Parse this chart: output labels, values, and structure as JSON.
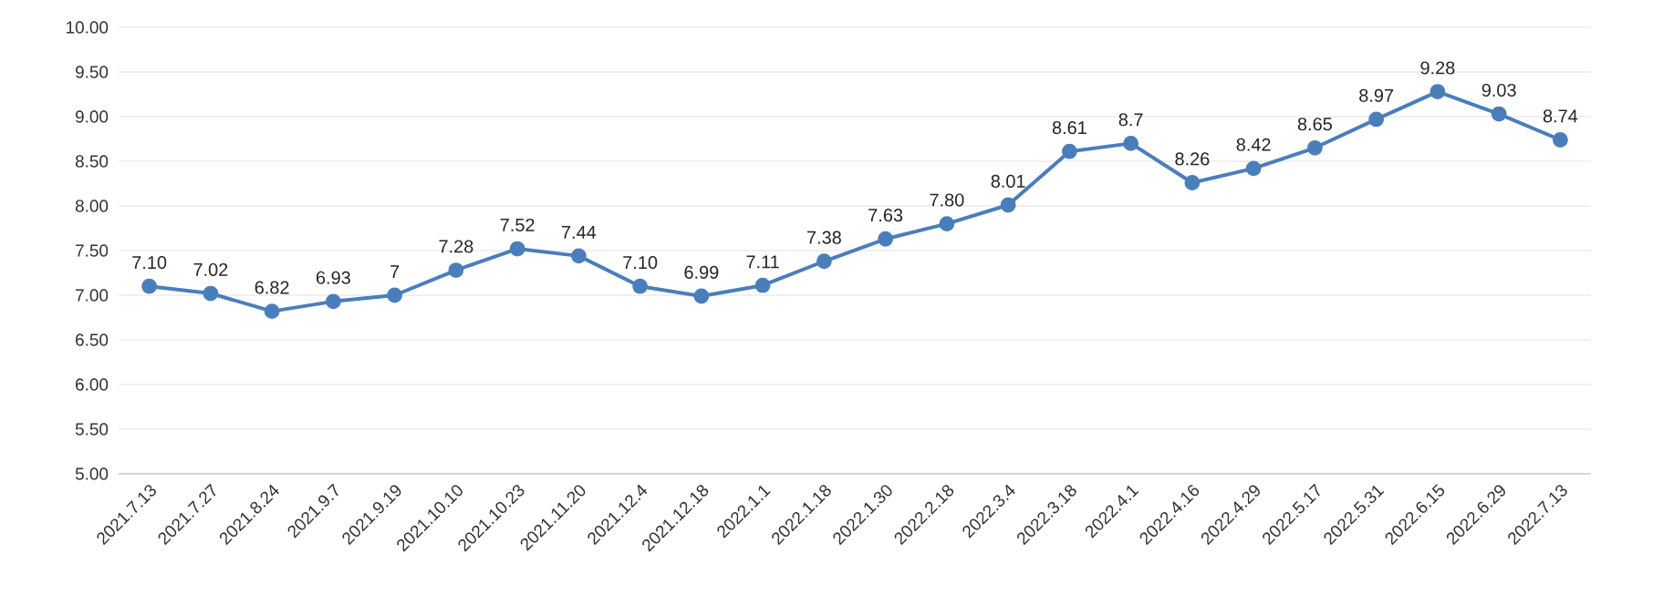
{
  "chart_data": {
    "type": "line",
    "categories": [
      "2021.7.13",
      "2021.7.27",
      "2021.8.24",
      "2021.9.7",
      "2021.9.19",
      "2021.10.10",
      "2021.10.23",
      "2021.11.20",
      "2021.12.4",
      "2021.12.18",
      "2022.1.1",
      "2022.1.18",
      "2022.1.30",
      "2022.2.18",
      "2022.3.4",
      "2022.3.18",
      "2022.4.1",
      "2022.4.16",
      "2022.4.29",
      "2022.5.17",
      "2022.5.31",
      "2022.6.15",
      "2022.6.29",
      "2022.7.13"
    ],
    "values": [
      7.1,
      7.02,
      6.82,
      6.93,
      7,
      7.28,
      7.52,
      7.44,
      7.1,
      6.99,
      7.11,
      7.38,
      7.63,
      7.8,
      8.01,
      8.61,
      8.7,
      8.26,
      8.42,
      8.65,
      8.97,
      9.28,
      9.03,
      8.74
    ],
    "value_labels": [
      "7.10",
      "7.02",
      "6.82",
      "6.93",
      "7",
      "7.28",
      "7.52",
      "7.44",
      "7.10",
      "6.99",
      "7.11",
      "7.38",
      "7.63",
      "7.80",
      "8.01",
      "8.61",
      "8.7",
      "8.26",
      "8.42",
      "8.65",
      "8.97",
      "9.28",
      "9.03",
      "8.74"
    ],
    "color": "#4a7ebb",
    "marker": "circle",
    "line_style": "solid",
    "grid": "y",
    "ylim": [
      5,
      10
    ],
    "yticks": [
      {
        "value": 5,
        "label": "5.00"
      },
      {
        "value": 5.5,
        "label": "5.50"
      },
      {
        "value": 6,
        "label": "6.00"
      },
      {
        "value": 6.5,
        "label": "6.50"
      },
      {
        "value": 7,
        "label": "7.00"
      },
      {
        "value": 7.5,
        "label": "7.50"
      },
      {
        "value": 8,
        "label": "8.00"
      },
      {
        "value": 8.5,
        "label": "8.50"
      },
      {
        "value": 9,
        "label": "9.00"
      },
      {
        "value": 9.5,
        "label": "9.50"
      },
      {
        "value": 10,
        "label": "10.00"
      }
    ]
  }
}
